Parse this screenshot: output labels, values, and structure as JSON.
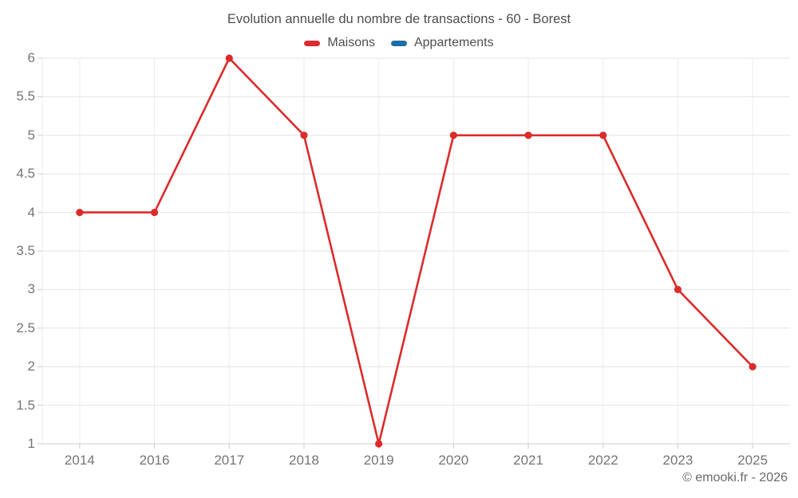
{
  "title": "Evolution annuelle du nombre de transactions - 60 - Borest",
  "footer": "© emooki.fr - 2026",
  "chart_data": {
    "type": "line",
    "title": "Evolution annuelle du nombre de transactions - 60 - Borest",
    "categories": [
      "2014",
      "2016",
      "2017",
      "2018",
      "2019",
      "2020",
      "2021",
      "2022",
      "2023",
      "2025"
    ],
    "series": [
      {
        "name": "Maisons",
        "color": "#db2b2b",
        "values": [
          4,
          4,
          6,
          5,
          1,
          5,
          5,
          5,
          3,
          2
        ]
      },
      {
        "name": "Appartements",
        "color": "#1c6ea4",
        "values": []
      }
    ],
    "xlabel": "",
    "ylabel": "",
    "ylim": [
      1,
      6
    ],
    "y_ticks": [
      1,
      1.5,
      2,
      2.5,
      3,
      3.5,
      4,
      4.5,
      5,
      5.5,
      6
    ],
    "grid": true,
    "legend_position": "top",
    "marker": "circle"
  },
  "colors": {
    "maisons": "#db2b2b",
    "appartements": "#1c6ea4",
    "grid_horizontal": "#e4e4e4",
    "grid_vertical": "#ededed",
    "axis_line": "#cccccc",
    "tick": "#cccccc",
    "title_text": "#4d4d4d",
    "axis_text": "#757575",
    "footer_text": "#696969"
  }
}
